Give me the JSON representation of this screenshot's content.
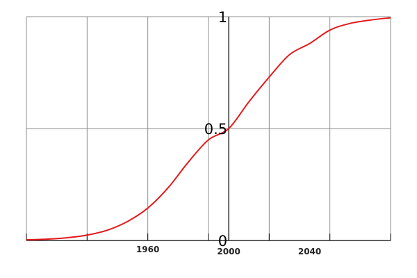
{
  "chart_data": {
    "type": "line",
    "title": "",
    "xlabel": "",
    "ylabel": "",
    "xlim": [
      1900,
      2080
    ],
    "ylim": [
      0,
      1
    ],
    "grid": true,
    "x_gridlines": [
      1900,
      1930,
      1960,
      1990,
      2000,
      2020,
      2050,
      2080
    ],
    "y_gridlines": [
      0,
      0.5,
      1
    ],
    "x_tick_labels": [
      {
        "value": 1960,
        "label": "1960"
      },
      {
        "value": 2000,
        "label": "2000"
      },
      {
        "value": 2040,
        "label": "2040"
      }
    ],
    "y_tick_labels": [
      {
        "value": 0,
        "label": "0"
      },
      {
        "value": 0.5,
        "label": "0.5"
      },
      {
        "value": 1,
        "label": "1"
      }
    ],
    "series": [
      {
        "color": "#e31a1c",
        "x": [
          1900,
          1910,
          1920,
          1930,
          1940,
          1950,
          1960,
          1970,
          1980,
          1990,
          2000,
          2010,
          2020,
          2030,
          2040,
          2050,
          2060,
          2070,
          2080
        ],
        "y": [
          0.003,
          0.006,
          0.012,
          0.024,
          0.046,
          0.085,
          0.145,
          0.235,
          0.35,
          0.45,
          0.5,
          0.62,
          0.73,
          0.83,
          0.88,
          0.94,
          0.97,
          0.985,
          0.995
        ]
      }
    ]
  }
}
